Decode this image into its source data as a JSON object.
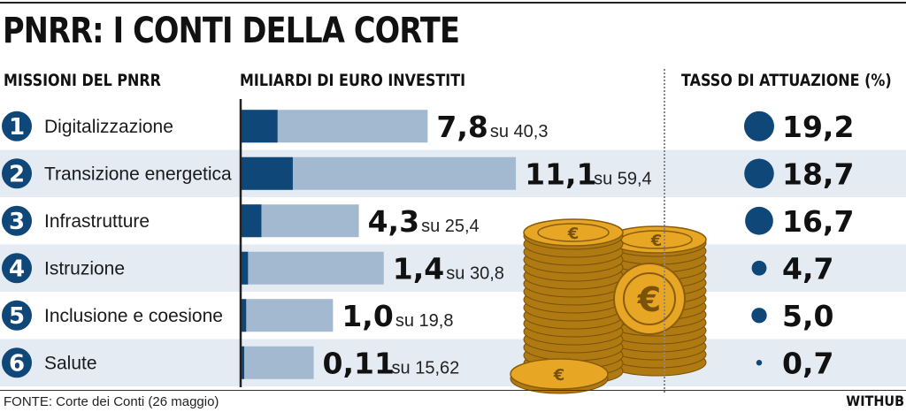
{
  "title": "PNRR: I CONTI DELLA CORTE",
  "headers": {
    "missions": "MISSIONI DEL PNRR",
    "billions": "MILIARDI DI EURO INVESTITI",
    "rate": "TASSO DI ATTUAZIONE (%)"
  },
  "colors": {
    "invested": "#0f4779",
    "total": "#a3b9d0",
    "band": "#e4ebf3",
    "coin": "#e8a625"
  },
  "chart_data": {
    "type": "bar",
    "categories": [
      "Digitalizzazione",
      "Transizione energetica",
      "Infrastrutture",
      "Istruzione",
      "Inclusione e coesione",
      "Salute"
    ],
    "numbers": [
      "1",
      "2",
      "3",
      "4",
      "5",
      "6"
    ],
    "series": [
      {
        "values": [
          7.8,
          11.1,
          4.3,
          1.4,
          1.0,
          0.11
        ]
      },
      {
        "values": [
          40.3,
          59.4,
          25.4,
          30.8,
          19.8,
          15.62
        ]
      }
    ],
    "invested_labels": [
      "7,8",
      "11,1",
      "4,3",
      "1,4",
      "1,0",
      "0,11"
    ],
    "total_labels": [
      "su 40,3",
      "su 59,4",
      "su 25,4",
      "su 30,8",
      "su 19,8",
      "su 15,62"
    ],
    "rate_values": [
      19.2,
      18.7,
      16.7,
      4.7,
      5.0,
      0.7
    ],
    "rate_labels": [
      "19,2",
      "18,7",
      "16,7",
      "4,7",
      "5,0",
      "0,7"
    ]
  },
  "footer": {
    "source": "FONTE: Corte dei Conti (26 maggio)",
    "credit": "WITHUB"
  }
}
